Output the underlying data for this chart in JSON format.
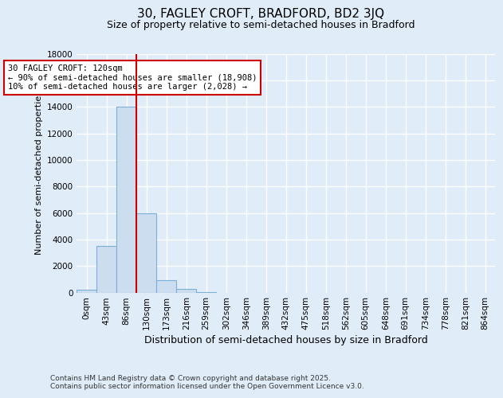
{
  "title": "30, FAGLEY CROFT, BRADFORD, BD2 3JQ",
  "subtitle": "Size of property relative to semi-detached houses in Bradford",
  "xlabel": "Distribution of semi-detached houses by size in Bradford",
  "ylabel": "Number of semi-detached properties",
  "categories": [
    "0sqm",
    "43sqm",
    "86sqm",
    "130sqm",
    "173sqm",
    "216sqm",
    "259sqm",
    "302sqm",
    "346sqm",
    "389sqm",
    "432sqm",
    "475sqm",
    "518sqm",
    "562sqm",
    "605sqm",
    "648sqm",
    "691sqm",
    "734sqm",
    "778sqm",
    "821sqm",
    "864sqm"
  ],
  "values": [
    200,
    3500,
    14000,
    6000,
    950,
    300,
    60,
    0,
    0,
    0,
    0,
    0,
    0,
    0,
    0,
    0,
    0,
    0,
    0,
    0,
    0
  ],
  "bar_color": "#ccddf0",
  "bar_edge_color": "#7ab0d8",
  "vline_color": "#cc0000",
  "vline_index": 2.5,
  "annotation_line1": "30 FAGLEY CROFT: 120sqm",
  "annotation_line2": "← 90% of semi-detached houses are smaller (18,908)",
  "annotation_line3": "10% of semi-detached houses are larger (2,028) →",
  "annotation_box_color": "#ffffff",
  "annotation_border_color": "#cc0000",
  "ylim_max": 18000,
  "ytick_step": 2000,
  "background_color": "#e0ecf8",
  "grid_color": "#ffffff",
  "footer_line1": "Contains HM Land Registry data © Crown copyright and database right 2025.",
  "footer_line2": "Contains public sector information licensed under the Open Government Licence v3.0.",
  "title_fontsize": 11,
  "subtitle_fontsize": 9,
  "xlabel_fontsize": 9,
  "ylabel_fontsize": 8,
  "tick_fontsize": 7.5,
  "footer_fontsize": 6.5
}
